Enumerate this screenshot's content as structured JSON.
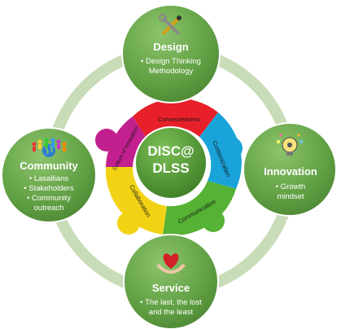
{
  "center": {
    "line1": "DISC@",
    "line2": "DLSS"
  },
  "nodes": {
    "top": {
      "title": "Design",
      "bullets": [
        "Design Thinking Methodology"
      ],
      "icon": "tools-icon"
    },
    "right": {
      "title": "Innovation",
      "bullets": [
        "Growth mindset"
      ],
      "icon": "lightbulb-gear-icon"
    },
    "bottom": {
      "title": "Service",
      "bullets": [
        "The last, the lost and the least"
      ],
      "icon": "heart-hands-icon"
    },
    "left": {
      "title": "Community",
      "bullets": [
        "Lasallians",
        "Stakeholders",
        "Community outreach"
      ],
      "icon": "people-globe-icon"
    }
  },
  "segments": [
    {
      "label": "Connectedness",
      "color": "#e8202a"
    },
    {
      "label": "Customization",
      "color": "#1aa3d9"
    },
    {
      "label": "Communication",
      "color": "#55b234"
    },
    {
      "label": "Collaboration",
      "color": "#f2d215"
    },
    {
      "label": "Culture of Innovation",
      "color": "#c21f8f"
    }
  ],
  "colors": {
    "node_green": "#6aa84f",
    "ring": "#c9dcb8",
    "center_green": "#5e9e3f"
  }
}
